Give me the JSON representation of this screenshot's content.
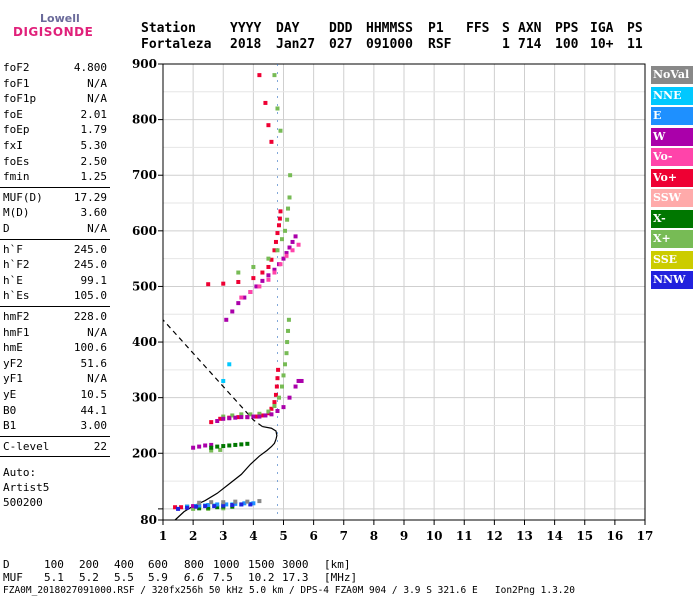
{
  "logo": {
    "line1": "Lowell",
    "line2": "DIGISONDE"
  },
  "header": {
    "row1": [
      "Station",
      "YYYY",
      "DAY",
      "DDD",
      "HHMMSS",
      "P1",
      "FFS",
      "S",
      "AXN",
      "PPS",
      "IGA",
      "PS"
    ],
    "row2": [
      "Fortaleza",
      "2018",
      "Jan27",
      "027",
      "091000",
      "RSF",
      "1",
      "714",
      "100",
      "10+",
      "11"
    ]
  },
  "params_group1": [
    {
      "name": "foF2",
      "value": "4.800"
    },
    {
      "name": "foF1",
      "value": "N/A"
    },
    {
      "name": "foF1p",
      "value": "N/A"
    },
    {
      "name": "foE",
      "value": "2.01"
    },
    {
      "name": "foEp",
      "value": "1.79"
    },
    {
      "name": "fxI",
      "value": "5.30"
    },
    {
      "name": "foEs",
      "value": "2.50"
    },
    {
      "name": "fmin",
      "value": "1.25"
    }
  ],
  "params_group2": [
    {
      "name": "MUF(D)",
      "value": "17.29"
    },
    {
      "name": "M(D)",
      "value": "3.60"
    },
    {
      "name": "D",
      "value": "N/A"
    }
  ],
  "params_group3": [
    {
      "name": "h`F",
      "value": "245.0"
    },
    {
      "name": "h`F2",
      "value": "245.0"
    },
    {
      "name": "h`E",
      "value": "99.1"
    },
    {
      "name": "h`Es",
      "value": "105.0"
    }
  ],
  "params_group4": [
    {
      "name": "hmF2",
      "value": "228.0"
    },
    {
      "name": "hmF1",
      "value": "N/A"
    },
    {
      "name": "hmE",
      "value": "100.6"
    },
    {
      "name": "yF2",
      "value": "51.6"
    },
    {
      "name": "yF1",
      "value": "N/A"
    },
    {
      "name": "yE",
      "value": "10.5"
    },
    {
      "name": "B0",
      "value": "44.1"
    },
    {
      "name": "B1",
      "value": "3.00"
    }
  ],
  "params_group5": [
    {
      "name": "C-level",
      "value": "22"
    }
  ],
  "autoscaling": {
    "line1": "Auto:",
    "line2": "Artist5",
    "line3": "500200"
  },
  "legend": [
    {
      "label": "NoVal",
      "bg": "#888888",
      "fg": "#ffffff"
    },
    {
      "label": "NNE",
      "bg": "#00c8ff",
      "fg": "#ffffff"
    },
    {
      "label": "E",
      "bg": "#1e90ff",
      "fg": "#ffffff"
    },
    {
      "label": "W",
      "bg": "#aa00aa",
      "fg": "#ffffff"
    },
    {
      "label": "Vo-",
      "bg": "#ff44aa",
      "fg": "#ffffff"
    },
    {
      "label": "Vo+",
      "bg": "#ee0033",
      "fg": "#ffffff"
    },
    {
      "label": "SSW",
      "bg": "#ffaaaa",
      "fg": "#ffffff"
    },
    {
      "label": "X-",
      "bg": "#007700",
      "fg": "#ffffff"
    },
    {
      "label": "X+",
      "bg": "#77bb55",
      "fg": "#ffffff"
    },
    {
      "label": "SSE",
      "bg": "#cccc00",
      "fg": "#ffffff"
    },
    {
      "label": "NNW",
      "bg": "#2222dd",
      "fg": "#ffffff"
    }
  ],
  "muf_table": {
    "d_label": "D",
    "d_values": [
      "100",
      "200",
      "400",
      "600",
      "800",
      "1000",
      "1500",
      "3000",
      "[km]"
    ],
    "muf_label": "MUF",
    "muf_values": [
      "5.1",
      "5.2",
      "5.5",
      "5.9",
      "6.6",
      "7.5",
      "10.2",
      "17.3",
      "[MHz]"
    ]
  },
  "footer": "FZA0M_2018027091000.RSF / 320fx256h 50 kHz 5.0 km / DPS-4 FZA0M 904 / 3.9 S 321.6 E   Ion2Png 1.3.20",
  "chart_data": {
    "type": "scatter",
    "title": "",
    "xlabel": "",
    "ylabel": "",
    "xlim": [
      1,
      17
    ],
    "ylim": [
      80,
      900
    ],
    "x_ticks": [
      1,
      2,
      3,
      4,
      5,
      6,
      7,
      8,
      9,
      10,
      11,
      12,
      13,
      14,
      15,
      16,
      17
    ],
    "y_ticks": [
      80,
      100,
      200,
      300,
      400,
      500,
      600,
      700,
      800,
      900
    ],
    "y_tick_labels": [
      "80",
      "",
      "200",
      "300",
      "400",
      "500",
      "600",
      "700",
      "800",
      "900"
    ],
    "grid": true,
    "legend_placement": "right",
    "series": [
      {
        "name": "Vo+",
        "color": "#ee0033",
        "x": [
          2.6,
          2.9,
          3.2,
          3.5,
          3.8,
          4.1,
          4.3,
          4.5,
          4.6,
          4.7,
          4.75,
          4.78,
          4.8,
          4.82,
          1.4,
          1.6,
          1.8,
          2.0,
          2.5,
          3.0,
          3.5,
          4.0,
          4.3,
          4.5,
          4.6,
          4.7,
          4.75,
          4.8,
          4.85,
          4.88,
          4.9,
          4.6,
          4.5,
          4.4,
          4.2
        ],
        "y": [
          256,
          262,
          264,
          265,
          265,
          266,
          268,
          272,
          280,
          292,
          305,
          320,
          335,
          350,
          103,
          103,
          104,
          104,
          504,
          505,
          508,
          515,
          525,
          535,
          548,
          565,
          580,
          596,
          610,
          622,
          635,
          760,
          790,
          830,
          880
        ]
      },
      {
        "name": "X+",
        "color": "#77bb55",
        "x": [
          3.0,
          3.3,
          3.6,
          3.9,
          4.2,
          4.5,
          4.7,
          4.85,
          4.95,
          5.0,
          5.05,
          5.1,
          5.12,
          5.15,
          5.18,
          2.0,
          2.5,
          3.0,
          2.6,
          2.9,
          3.5,
          4.0,
          4.5,
          4.8,
          4.95,
          5.05,
          5.12,
          5.15,
          5.2,
          5.22,
          4.9,
          4.8,
          4.7
        ],
        "y": [
          266,
          268,
          270,
          270,
          271,
          275,
          285,
          300,
          320,
          340,
          360,
          380,
          400,
          420,
          440,
          100,
          100,
          101,
          205,
          206,
          525,
          535,
          550,
          565,
          585,
          600,
          620,
          640,
          660,
          700,
          780,
          820,
          880
        ]
      },
      {
        "name": "W",
        "color": "#aa00aa",
        "x": [
          2.0,
          2.2,
          2.4,
          2.6,
          2.8,
          3.0,
          3.2,
          3.4,
          3.6,
          3.8,
          4.0,
          4.2,
          4.4,
          4.6,
          4.8,
          5.0,
          5.2,
          5.4,
          5.5,
          5.6,
          3.1,
          3.3,
          3.5,
          3.7,
          3.9,
          4.1,
          4.3,
          4.5,
          4.7,
          4.85,
          5.0,
          5.1,
          5.2,
          5.3,
          5.4,
          1.8,
          2.0,
          2.2,
          2.4
        ],
        "y": [
          210,
          212,
          214,
          215,
          258,
          262,
          263,
          264,
          265,
          265,
          266,
          266,
          268,
          270,
          276,
          283,
          300,
          320,
          330,
          330,
          440,
          455,
          470,
          480,
          490,
          500,
          510,
          520,
          530,
          540,
          550,
          560,
          570,
          580,
          590,
          104,
          105,
          105,
          106
        ]
      },
      {
        "name": "X-",
        "color": "#007700",
        "x": [
          2.6,
          2.8,
          3.0,
          3.2,
          3.4,
          3.6,
          3.8,
          2.2,
          2.5,
          2.8,
          3.0,
          3.3
        ],
        "y": [
          210,
          212,
          213,
          214,
          215,
          216,
          217,
          101,
          102,
          103,
          104,
          104
        ]
      },
      {
        "name": "NNE",
        "color": "#00c8ff",
        "x": [
          1.8,
          2.1,
          2.4,
          2.7,
          3.0,
          3.3,
          3.6,
          3.9,
          3.0,
          3.2
        ],
        "y": [
          104,
          105,
          106,
          106,
          107,
          108,
          108,
          109,
          330,
          360
        ]
      },
      {
        "name": "E",
        "color": "#1e90ff",
        "x": [
          2.2,
          2.5,
          2.8,
          3.1,
          3.4,
          3.7,
          4.0
        ],
        "y": [
          106,
          107,
          108,
          108,
          109,
          110,
          110
        ]
      },
      {
        "name": "Vo-",
        "color": "#ff44aa",
        "x": [
          3.6,
          3.9,
          4.2,
          4.5,
          4.7,
          4.9,
          5.1,
          5.3,
          5.5
        ],
        "y": [
          480,
          490,
          500,
          512,
          525,
          540,
          555,
          565,
          575
        ]
      },
      {
        "name": "NNW",
        "color": "#2222dd",
        "x": [
          1.5,
          1.8,
          2.1,
          2.4,
          2.7,
          3.0,
          3.3,
          3.6,
          3.9
        ],
        "y": [
          100,
          102,
          104,
          105,
          105,
          106,
          107,
          108,
          108
        ]
      },
      {
        "name": "NoVal",
        "color": "#888888",
        "x": [
          2.2,
          2.6,
          3.0,
          3.4,
          3.8,
          4.2
        ],
        "y": [
          111,
          112,
          112,
          113,
          113,
          114
        ]
      }
    ],
    "profile_true_height": {
      "color": "#000000",
      "style": "solid",
      "x": [
        1.4,
        1.7,
        2.0,
        2.4,
        2.8,
        3.2,
        3.6,
        3.9,
        4.2,
        4.45,
        4.6,
        4.7,
        4.75,
        4.78,
        4.75,
        4.6,
        4.3
      ],
      "y": [
        80,
        95,
        105,
        115,
        128,
        145,
        162,
        180,
        195,
        205,
        212,
        218,
        225,
        232,
        240,
        245,
        248
      ]
    },
    "profile_extrapolated": {
      "color": "#000000",
      "style": "dashed",
      "x": [
        4.3,
        4.0,
        3.5,
        3.0,
        2.5,
        2.0,
        1.5,
        1.0
      ],
      "y": [
        248,
        260,
        290,
        320,
        350,
        380,
        410,
        440
      ]
    }
  }
}
